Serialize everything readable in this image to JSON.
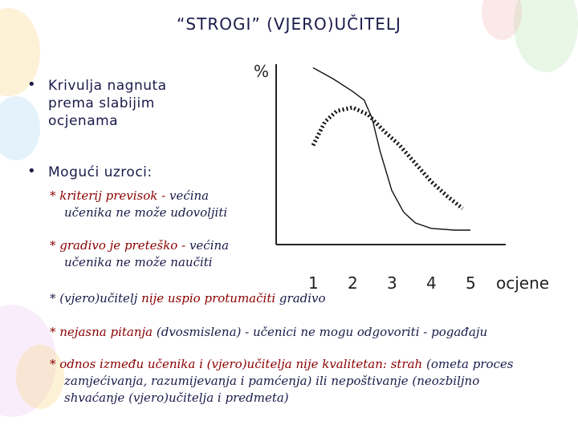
{
  "title": "“STROGI” (VJERO)UČITELJ",
  "bullets": [
    {
      "lines": [
        "Krivulja nagnuta",
        "prema slabijim",
        "ocjenama"
      ]
    },
    {
      "lines": [
        "Mogući uzroci:"
      ]
    }
  ],
  "causes": [
    {
      "parts": [
        {
          "t": "* kriterij previsok - ",
          "red": true
        },
        {
          "t": "većina",
          "red": false
        }
      ],
      "cont": "učenika ne može udovoljiti"
    },
    {
      "parts": [
        {
          "t": "* gradivo je preteško - ",
          "red": true
        },
        {
          "t": "većina",
          "red": false
        }
      ],
      "cont": "učenika ne može naučiti"
    },
    {
      "parts": [
        {
          "t": "* (vjero)učitelj ",
          "red": false
        },
        {
          "t": "nije uspio protumačiti",
          "red": true
        },
        {
          "t": " gradivo",
          "red": false
        }
      ],
      "cont": ""
    },
    {
      "parts": [
        {
          "t": "* nejasna pitanja",
          "red": true
        },
        {
          "t": " (dvosmislena)  - učenici ne mogu odgovoriti - pogađaju",
          "red": false
        }
      ],
      "cont": ""
    },
    {
      "parts": [
        {
          "t": "* odnos između učenika i (vjero)učitelja  nije kvalitetan: strah",
          "red": true
        },
        {
          "t": " (ometa proces",
          "red": false
        }
      ],
      "cont": "zamjećivanja, razumijevanja i pamćenja) ili nepoštivanje (neozbiljno shvaćanje (vjero)učitelja i predmeta)"
    }
  ],
  "chart_data": {
    "type": "line",
    "ylabel": "%",
    "xlabel": "ocjene",
    "x": [
      1,
      2,
      3,
      4,
      5
    ],
    "series": [
      {
        "style": "solid",
        "points": [
          [
            1.0,
            98
          ],
          [
            1.5,
            92
          ],
          [
            2.0,
            85
          ],
          [
            2.3,
            80
          ],
          [
            2.5,
            70
          ],
          [
            2.7,
            52
          ],
          [
            3.0,
            30
          ],
          [
            3.3,
            18
          ],
          [
            3.6,
            12
          ],
          [
            4.0,
            9
          ],
          [
            4.6,
            8
          ],
          [
            5.0,
            8
          ]
        ]
      },
      {
        "style": "dotted",
        "points": [
          [
            1.0,
            55
          ],
          [
            1.3,
            68
          ],
          [
            1.6,
            74
          ],
          [
            2.0,
            76
          ],
          [
            2.4,
            72
          ],
          [
            2.8,
            63
          ],
          [
            3.2,
            55
          ],
          [
            3.6,
            45
          ],
          [
            4.0,
            35
          ],
          [
            4.4,
            27
          ],
          [
            4.8,
            20
          ]
        ]
      }
    ]
  },
  "colors": {
    "text": "#1a1a4a",
    "emph": "#8b0000",
    "axis": "#222222"
  }
}
